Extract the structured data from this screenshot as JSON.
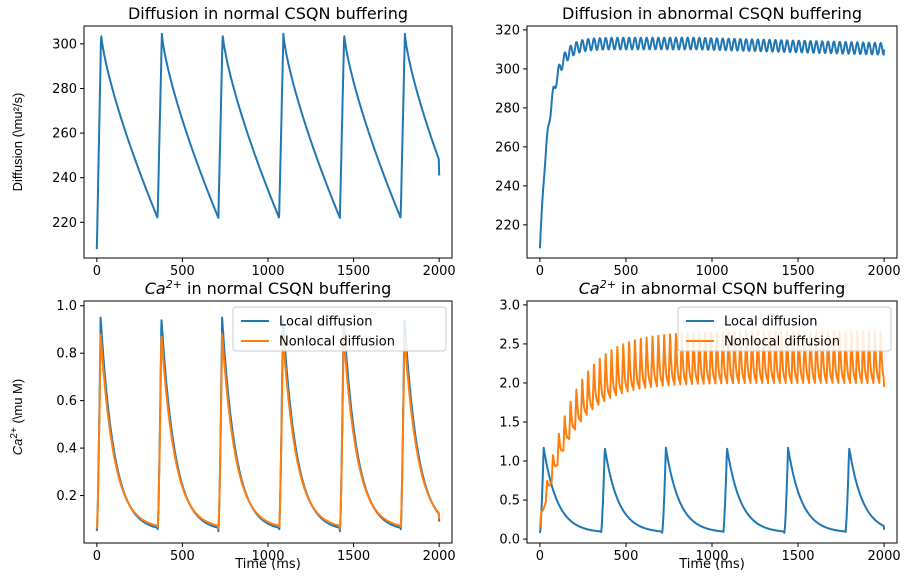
{
  "colors": {
    "local": "#1f77b4",
    "nonlocal": "#ff7f0e"
  },
  "chart_data": [
    {
      "type": "line",
      "title": "Diffusion in normal CSQN buffering",
      "xlabel": "",
      "ylabel": "Diffusion (\\mu²/s)",
      "xlim": [
        -75,
        2075
      ],
      "ylim": [
        204,
        308
      ],
      "xticks": [
        0,
        500,
        1000,
        1500,
        2000
      ],
      "yticks": [
        220,
        240,
        260,
        280,
        300
      ],
      "model": {
        "kind": "diff_normal",
        "start": 208,
        "peak": 304.5,
        "trough": 222,
        "end_value": 241,
        "period": 355,
        "rise": 25
      },
      "series": [
        {
          "name": "",
          "color": "#1f77b4"
        }
      ]
    },
    {
      "type": "line",
      "title": "Diffusion in abnormal CSQN buffering",
      "xlabel": "",
      "ylabel": "",
      "xlim": [
        -75,
        2075
      ],
      "ylim": [
        203,
        322
      ],
      "xticks": [
        0,
        500,
        1000,
        1500,
        2000
      ],
      "yticks": [
        220,
        240,
        260,
        280,
        300,
        320
      ],
      "model": {
        "kind": "diff_abnormal",
        "start": 208,
        "plateau": 313,
        "amplitude": 3,
        "osc_period": 34,
        "end_value": 310
      },
      "series": [
        {
          "name": "",
          "color": "#1f77b4"
        }
      ]
    },
    {
      "type": "line",
      "title": "Ca2+ in normal CSQN buffering",
      "title_base": "Ca",
      "title_sup": "2+",
      "title_rest": " in normal CSQN buffering",
      "xlabel": "Time (ms)",
      "ylabel": "Ca2+ (\\mu M)",
      "ylabel_base": "Ca",
      "ylabel_sup": "2+",
      "ylabel_rest": " (\\mu M)",
      "xlim": [
        -75,
        2075
      ],
      "ylim": [
        0.0,
        1.02
      ],
      "xticks": [
        0,
        500,
        1000,
        1500,
        2000
      ],
      "yticks": [
        0.2,
        0.4,
        0.6,
        0.8,
        1.0
      ],
      "legend": "top-right",
      "model": {
        "kind": "ca_normal",
        "period": 355,
        "base": 0.05,
        "local_peak": 0.95,
        "nonlocal_peak": 0.88,
        "end_local": 0.09,
        "end_nonlocal": 0.1
      },
      "series": [
        {
          "name": "Local diffusion",
          "color": "#1f77b4"
        },
        {
          "name": "Nonlocal diffusion",
          "color": "#ff7f0e"
        }
      ]
    },
    {
      "type": "line",
      "title": "Ca2+ in abnormal CSQN buffering",
      "title_base": "Ca",
      "title_sup": "2+",
      "title_rest": " in abnormal CSQN buffering",
      "xlabel": "Time (ms)",
      "ylabel": "",
      "xlim": [
        -75,
        2075
      ],
      "ylim": [
        -0.05,
        3.05
      ],
      "xticks": [
        0,
        500,
        1000,
        1500,
        2000
      ],
      "yticks": [
        0.0,
        0.5,
        1.0,
        1.5,
        2.0,
        2.5,
        3.0
      ],
      "legend": "top-right",
      "model": {
        "kind": "ca_abnormal",
        "period": 355,
        "local_base": 0.08,
        "local_peak": 1.17,
        "end_local": 0.12,
        "nonlocal_trough": 2.0,
        "nonlocal_peak": 2.7,
        "osc_period": 34,
        "end_nonlocal": 1.95
      },
      "series": [
        {
          "name": "Local diffusion",
          "color": "#1f77b4"
        },
        {
          "name": "Nonlocal diffusion",
          "color": "#ff7f0e"
        }
      ]
    }
  ]
}
